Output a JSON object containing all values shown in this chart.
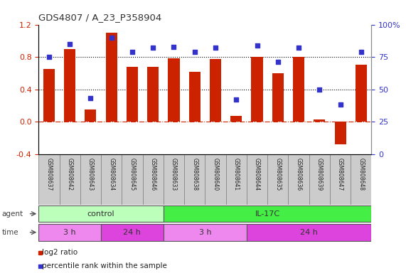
{
  "title": "GDS4807 / A_23_P358904",
  "samples": [
    "GSM808637",
    "GSM808642",
    "GSM808643",
    "GSM808634",
    "GSM808645",
    "GSM808646",
    "GSM808633",
    "GSM808638",
    "GSM808640",
    "GSM808641",
    "GSM808644",
    "GSM808635",
    "GSM808636",
    "GSM808639",
    "GSM808647",
    "GSM808648"
  ],
  "log2_ratio": [
    0.65,
    0.9,
    0.15,
    1.1,
    0.68,
    0.68,
    0.78,
    0.62,
    0.77,
    0.07,
    0.8,
    0.6,
    0.8,
    0.03,
    -0.28,
    0.7
  ],
  "percentile": [
    75,
    85,
    43,
    90,
    79,
    82,
    83,
    79,
    82,
    42,
    84,
    71,
    82,
    50,
    38,
    79
  ],
  "bar_color": "#cc2200",
  "dot_color": "#3333cc",
  "ylim_left": [
    -0.4,
    1.2
  ],
  "ylim_right": [
    0,
    100
  ],
  "yticks_left": [
    -0.4,
    0.0,
    0.4,
    0.8,
    1.2
  ],
  "yticks_right": [
    0,
    25,
    50,
    75,
    100
  ],
  "hlines": [
    0.4,
    0.8
  ],
  "agent_groups": [
    {
      "label": "control",
      "start": 0,
      "end": 6,
      "color": "#bbffbb"
    },
    {
      "label": "IL-17C",
      "start": 6,
      "end": 16,
      "color": "#44ee44"
    }
  ],
  "time_groups": [
    {
      "label": "3 h",
      "start": 0,
      "end": 3,
      "color": "#ee88ee"
    },
    {
      "label": "24 h",
      "start": 3,
      "end": 6,
      "color": "#dd44dd"
    },
    {
      "label": "3 h",
      "start": 6,
      "end": 10,
      "color": "#ee88ee"
    },
    {
      "label": "24 h",
      "start": 10,
      "end": 16,
      "color": "#dd44dd"
    }
  ],
  "legend_items": [
    {
      "label": "log2 ratio",
      "color": "#cc2200"
    },
    {
      "label": "percentile rank within the sample",
      "color": "#3333cc"
    }
  ],
  "bg_color": "#ffffff",
  "bar_width": 0.55
}
